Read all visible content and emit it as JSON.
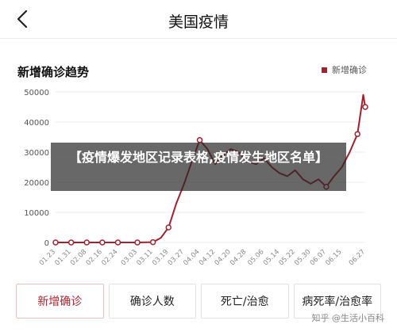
{
  "nav": {
    "title": "美国疫情"
  },
  "chart": {
    "title": "新增确诊趋势",
    "legend": "新增确诊"
  },
  "overlay": {
    "text": "【疫情爆发地区记录表格,疫情发生地区名单】"
  },
  "tabs": [
    {
      "label": "新增确诊",
      "active": true
    },
    {
      "label": "确诊人数",
      "active": false
    },
    {
      "label": "死亡/治愈",
      "active": false
    },
    {
      "label": "病死率/治愈率",
      "active": false
    }
  ],
  "watermark": "知乎 @生活小百科",
  "colors": {
    "series": "#a3202f",
    "active_tab": "#b22232"
  },
  "chart_data": {
    "type": "line",
    "title": "",
    "xlabel": "",
    "ylabel": "",
    "ylim": [
      0,
      50000
    ],
    "yticks": [
      0,
      10000,
      20000,
      30000,
      40000,
      50000
    ],
    "xtick_labels": [
      "01.23",
      "01.31",
      "02.08",
      "02.16",
      "02.24",
      "03.03",
      "03.11",
      "03.19",
      "03.27",
      "04.04",
      "04.12",
      "04.20",
      "04.28",
      "05.06",
      "05.14",
      "05.22",
      "05.30",
      "06.07",
      "06.15",
      "06.27"
    ],
    "series": [
      {
        "name": "新增确诊",
        "x": [
          "01.23",
          "01.31",
          "02.08",
          "02.16",
          "02.24",
          "03.03",
          "03.11",
          "03.15",
          "03.19",
          "03.23",
          "03.27",
          "03.31",
          "04.04",
          "04.08",
          "04.12",
          "04.16",
          "04.20",
          "04.24",
          "04.28",
          "05.02",
          "05.06",
          "05.10",
          "05.14",
          "05.18",
          "05.22",
          "05.26",
          "05.30",
          "06.03",
          "06.07",
          "06.11",
          "06.15",
          "06.19",
          "06.23",
          "06.26",
          "06.27"
        ],
        "values": [
          0,
          0,
          0,
          0,
          0,
          0,
          100,
          1500,
          5000,
          13000,
          19500,
          27000,
          34000,
          31000,
          26000,
          29000,
          31000,
          30000,
          27000,
          26000,
          28000,
          25000,
          23000,
          22000,
          24000,
          21000,
          19500,
          21000,
          18500,
          22000,
          25000,
          30000,
          36000,
          49000,
          45000
        ]
      }
    ],
    "highlight_points": [
      {
        "x": "01.23",
        "y": 0
      },
      {
        "x": "01.31",
        "y": 0
      },
      {
        "x": "02.08",
        "y": 0
      },
      {
        "x": "02.16",
        "y": 0
      },
      {
        "x": "02.24",
        "y": 0
      },
      {
        "x": "03.03",
        "y": 0
      },
      {
        "x": "03.11",
        "y": 100
      },
      {
        "x": "03.19",
        "y": 5000
      },
      {
        "x": "04.04",
        "y": 34000
      },
      {
        "x": "06.07",
        "y": 18500
      },
      {
        "x": "06.23",
        "y": 36000
      },
      {
        "x": "06.27",
        "y": 45000
      }
    ]
  }
}
